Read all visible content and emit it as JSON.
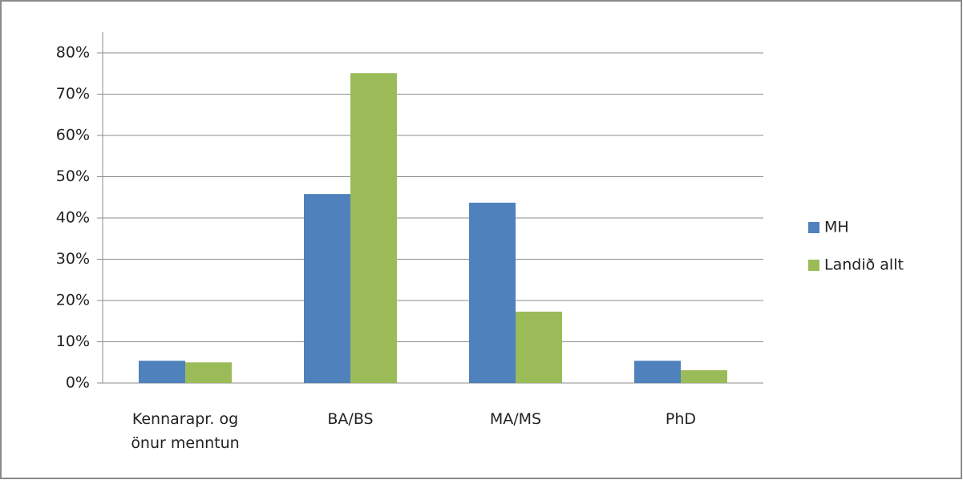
{
  "chart_data": {
    "type": "bar",
    "categories": [
      "Kennarapr. og önur menntun",
      "BA/BS",
      "MA/MS",
      "PhD"
    ],
    "series": [
      {
        "name": "MH",
        "color": "#4f81bd",
        "values": [
          5.4,
          45.8,
          43.7,
          5.4
        ]
      },
      {
        "name": "Landið allt",
        "color": "#9bbb59",
        "values": [
          5.0,
          75.1,
          17.3,
          3.1
        ]
      }
    ],
    "ylim": [
      0,
      80
    ],
    "yticks": [
      {
        "value": 0,
        "label": "0%"
      },
      {
        "value": 10,
        "label": "10%"
      },
      {
        "value": 20,
        "label": "20%"
      },
      {
        "value": 30,
        "label": "30%"
      },
      {
        "value": 40,
        "label": "40%"
      },
      {
        "value": 50,
        "label": "50%"
      },
      {
        "value": 60,
        "label": "60%"
      },
      {
        "value": 70,
        "label": "70%"
      },
      {
        "value": 80,
        "label": "80%"
      }
    ],
    "grid": true,
    "legend": "right"
  }
}
